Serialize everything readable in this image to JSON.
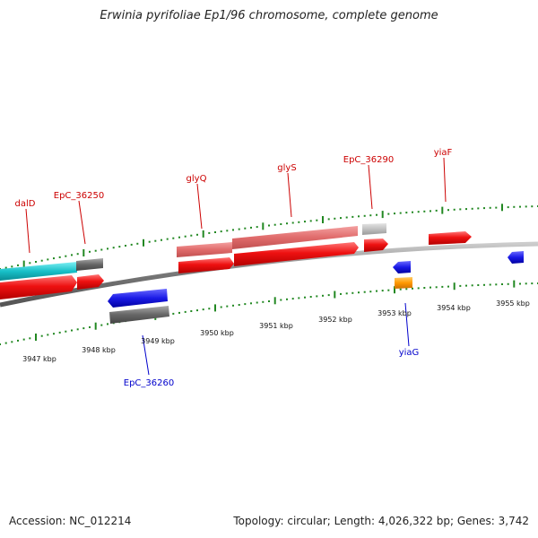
{
  "title": "Erwinia pyrifoliae Ep1/96 chromosome, complete genome",
  "footer": {
    "accession": "Accession: NC_012214",
    "topology": "Topology: circular; Length: 4,026,322 bp; Genes: 3,742"
  },
  "scale_labels": [
    "3947 kbp",
    "3948 kbp",
    "3949 kbp",
    "3950 kbp",
    "3951 kbp",
    "3952 kbp",
    "3953 kbp",
    "3954 kbp",
    "3955 kbp"
  ],
  "gene_labels": [
    "dalD",
    "EpC_36250",
    "glyQ",
    "glyS",
    "EpC_36290",
    "yiaF",
    "EpC_36260",
    "yiaG"
  ],
  "colors": {
    "forward_gene": "#ee1111",
    "forward_gene_light": "#e06060",
    "reverse_gene": "#1a1ae6",
    "cyan_feature": "#18b8c0",
    "gray_feature": "#666666",
    "light_gray_feature": "#bbbbbb",
    "orange_feature": "#ff9900",
    "tick_color": "#228822",
    "backbone": "#888888",
    "label_red": "#cc0000",
    "label_blue": "#0000cc"
  }
}
